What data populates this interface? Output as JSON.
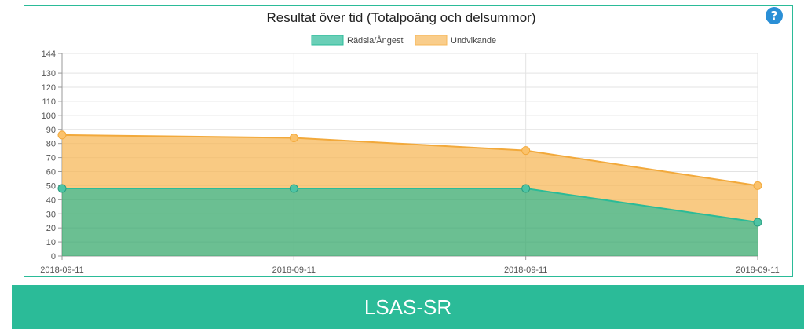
{
  "chart_data": {
    "type": "area",
    "stacked": true,
    "title": "Resultat över tid (Totalpoäng och delsummor)",
    "categories": [
      "2018-09-11",
      "2018-09-11",
      "2018-09-11",
      "2018-09-11"
    ],
    "series": [
      {
        "name": "Rädsla/Ångest",
        "values": [
          48,
          48,
          48,
          24
        ],
        "color": "#2bbb98"
      },
      {
        "name": "Undvikande",
        "values": [
          38,
          36,
          27,
          26
        ],
        "color": "#f7b85a"
      }
    ],
    "stacked_totals": [
      86,
      84,
      75,
      50
    ],
    "ylim": [
      0,
      144
    ],
    "yticks": [
      0,
      10,
      20,
      30,
      40,
      50,
      60,
      70,
      80,
      90,
      100,
      110,
      120,
      130,
      144
    ],
    "grid": true,
    "legend": "top"
  },
  "help_icon": "question-circle-icon",
  "banner": {
    "label": "LSAS-SR",
    "color": "#2bbb98"
  }
}
